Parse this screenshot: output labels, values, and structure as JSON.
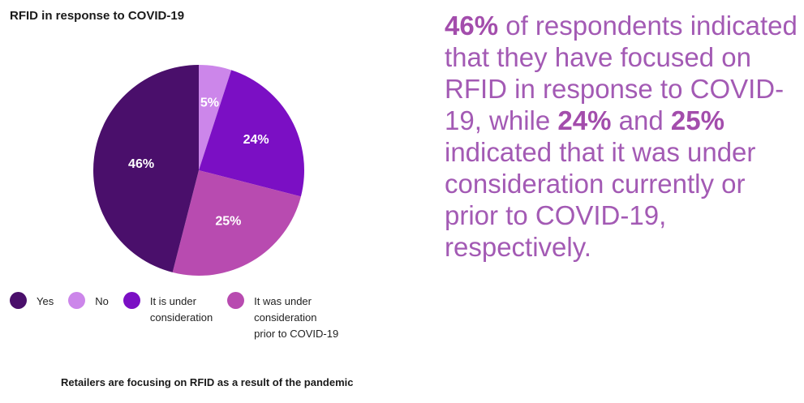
{
  "chart_data": {
    "type": "pie",
    "title": "RFID in response to COVID-19",
    "categories": [
      "Yes",
      "No",
      "It is under consideration",
      "It was under consideration prior to COVID-19"
    ],
    "values": [
      46,
      5,
      24,
      25
    ],
    "labels": [
      "46%",
      "5%",
      "24%",
      "25%"
    ],
    "colors": [
      "#4a0f6b",
      "#cc86ea",
      "#7b0fc4",
      "#b84bb0"
    ],
    "legend_position": "bottom",
    "caption": "Retailers are focusing on RFID as a result of the pandemic"
  },
  "legend": [
    {
      "label": "Yes",
      "color": "#4a0f6b"
    },
    {
      "label": "No",
      "color": "#cc86ea"
    },
    {
      "label": "It is under\nconsideration",
      "color": "#7b0fc4"
    },
    {
      "label": "It was under\nconsideration\nprior to COVID-19",
      "color": "#b84bb0"
    }
  ],
  "statement": {
    "stat1": "46%",
    "text1": " of respondents indicated that they have focused on RFID in response to COVID-19, while ",
    "stat2": "24%",
    "text2": " and ",
    "stat3": "25%",
    "text3": " indicated that it was under consideration currently or prior to COVID-19, respectively."
  }
}
